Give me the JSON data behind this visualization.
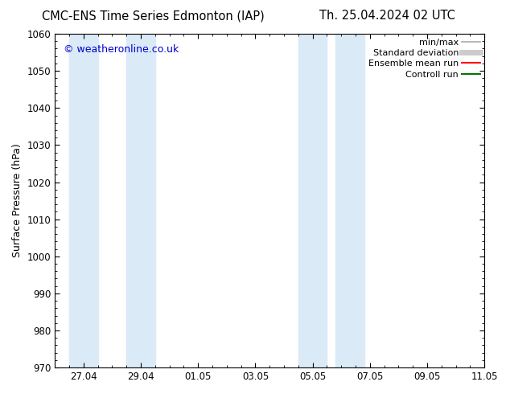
{
  "title_left": "CMC-ENS Time Series Edmonton (IAP)",
  "title_right": "Th. 25.04.2024 02 UTC",
  "ylabel": "Surface Pressure (hPa)",
  "ylim": [
    970,
    1060
  ],
  "yticks": [
    970,
    980,
    990,
    1000,
    1010,
    1020,
    1030,
    1040,
    1050,
    1060
  ],
  "xtick_labels": [
    "27.04",
    "29.04",
    "01.05",
    "03.05",
    "05.05",
    "07.05",
    "09.05",
    "11.05"
  ],
  "xtick_positions": [
    1,
    3,
    5,
    7,
    9,
    11,
    13,
    15
  ],
  "x_min": 0,
  "x_max": 15,
  "background_color": "#ffffff",
  "plot_bg_color": "#ffffff",
  "shaded_bands": [
    {
      "x_start": 0.5,
      "x_end": 1.5,
      "color": "#daeaf7"
    },
    {
      "x_start": 2.5,
      "x_end": 3.5,
      "color": "#daeaf7"
    },
    {
      "x_start": 8.5,
      "x_end": 9.5,
      "color": "#daeaf7"
    },
    {
      "x_start": 9.8,
      "x_end": 10.8,
      "color": "#daeaf7"
    }
  ],
  "watermark": "© weatheronline.co.uk",
  "watermark_color": "#0000cc",
  "legend_items": [
    {
      "label": "min/max",
      "color": "#aaaaaa",
      "lw": 1.2
    },
    {
      "label": "Standard deviation",
      "color": "#cccccc",
      "lw": 5
    },
    {
      "label": "Ensemble mean run",
      "color": "#ff0000",
      "lw": 1.5
    },
    {
      "label": "Controll run",
      "color": "#007700",
      "lw": 1.5
    }
  ],
  "title_fontsize": 10.5,
  "axis_label_fontsize": 9,
  "tick_fontsize": 8.5,
  "legend_fontsize": 8,
  "watermark_fontsize": 9
}
